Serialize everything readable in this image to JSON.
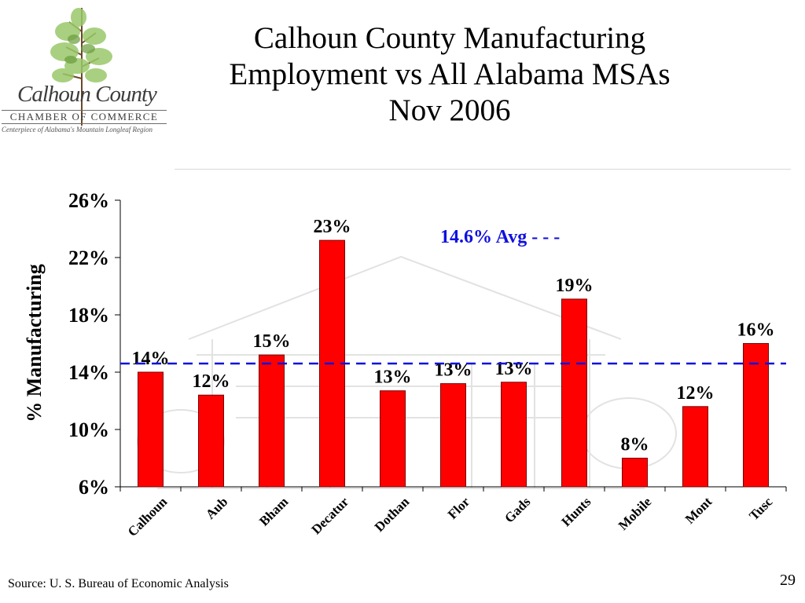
{
  "logo": {
    "name_line": "Calhoun County",
    "org_line": "CHAMBER OF COMMERCE",
    "tagline": "Centerpiece of Alabama's Mountain Longleaf Region"
  },
  "slide": {
    "title_line1": "Calhoun County Manufacturing",
    "title_line2": "Employment vs All Alabama MSAs",
    "title_line3": "Nov 2006",
    "source": "Source: U. S. Bureau of Economic Analysis",
    "page_number": "29"
  },
  "chart_data": {
    "type": "bar",
    "categories": [
      "Calhoun",
      "Aub",
      "Bham",
      "Decatur",
      "Dothan",
      "Flor",
      "Gads",
      "Hunts",
      "Mobile",
      "Mont",
      "Tusc"
    ],
    "series": [
      {
        "values": [
          14.0,
          12.4,
          15.2,
          23.2,
          12.7,
          13.2,
          13.3,
          19.1,
          8.0,
          11.6,
          16.0
        ],
        "data_labels": [
          "14%",
          "12%",
          "15%",
          "23%",
          "13%",
          "13%",
          "13%",
          "19%",
          "8%",
          "12%",
          "16%"
        ],
        "color": "#ff0000"
      }
    ],
    "ylabel": "% Manufacturing",
    "ylim": [
      6,
      26
    ],
    "yticks": [
      6,
      10,
      14,
      18,
      22,
      26
    ],
    "ytick_labels": [
      "6%",
      "10%",
      "14%",
      "18%",
      "22%",
      "26%"
    ],
    "reference_line": {
      "value": 14.6,
      "label": "14.6% Avg - - -",
      "color": "#1010e0",
      "style": "dashed"
    },
    "grid": false,
    "legend": "none"
  }
}
